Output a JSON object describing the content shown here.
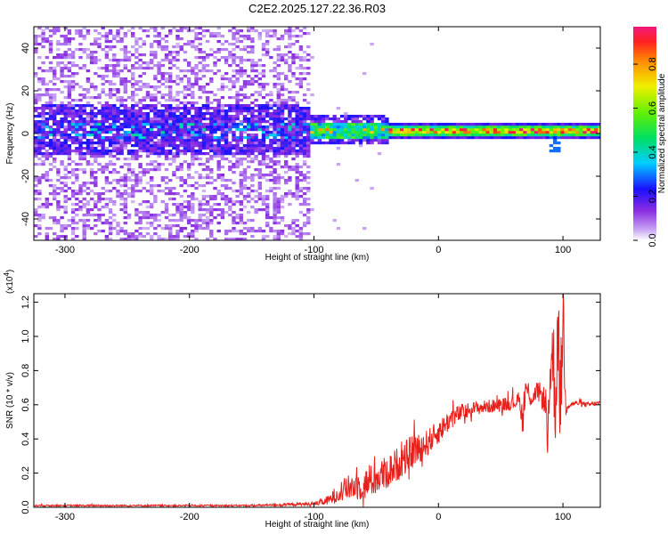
{
  "figure_title": "C2E2.2025.127.22.36.R03",
  "chart_data": [
    {
      "type": "heatmap",
      "xlabel": "Height of straight line (km)",
      "ylabel": "Frequency (Hz)",
      "xlim": [
        -325,
        130
      ],
      "ylim": [
        -50,
        50
      ],
      "xticks": [
        "-300",
        "-200",
        "-100",
        "0",
        "100"
      ],
      "xtick_values": [
        -300,
        -200,
        -100,
        0,
        100
      ],
      "yticks": [
        "-40",
        "-20",
        "0",
        "20",
        "40"
      ],
      "ytick_values": [
        -40,
        -20,
        0,
        20,
        40
      ],
      "colorbar": {
        "label": "Normalized spectral amplitude",
        "range": [
          0.0,
          0.97
        ],
        "ticks": [
          "0.0",
          "0.2",
          "0.4",
          "0.6",
          "0.8"
        ],
        "tick_values": [
          0.0,
          0.2,
          0.4,
          0.6,
          0.8
        ]
      },
      "description_regions": [
        {
          "x_range": [
            -325,
            -105
          ],
          "freq_spread": [
            -50,
            50
          ],
          "level": "low (0.0-0.2) scattered noise"
        },
        {
          "x_range": [
            -325,
            -105
          ],
          "freq_spread": [
            -10,
            10
          ],
          "level": "~0.2 dense band with 0.3-0.5 spots"
        },
        {
          "x_range": [
            -105,
            -40
          ],
          "freq_spread": [
            -5,
            6
          ],
          "level": "0.3-0.6 band"
        },
        {
          "x_range": [
            -40,
            130
          ],
          "freq_spread": [
            -2,
            4
          ],
          "level": "0.4-1.0 narrow band near 1-2 Hz"
        }
      ]
    },
    {
      "type": "line",
      "xlabel": "Height of straight line (km)",
      "ylabel": "SNR (10 * v/v)",
      "y_multiplier": "(x10",
      "y_multiplier_exp": "4",
      "y_multiplier_close": ")",
      "xlim": [
        -325,
        130
      ],
      "ylim": [
        0.0,
        1.25
      ],
      "xticks": [
        "-300",
        "-200",
        "-100",
        "0",
        "100"
      ],
      "xtick_values": [
        -300,
        -200,
        -100,
        0,
        100
      ],
      "yticks": [
        "0.0",
        "0.2",
        "0.4",
        "0.6",
        "0.8",
        "1.0",
        "1.2"
      ],
      "ytick_values": [
        0.0,
        0.2,
        0.4,
        0.6,
        0.8,
        1.0,
        1.2
      ],
      "series": [
        {
          "color": "#e8201c",
          "x": [
            -325,
            -150,
            -100,
            -88,
            -80,
            -70,
            -60,
            -50,
            -40,
            -30,
            -20,
            -10,
            0,
            10,
            20,
            30,
            40,
            50,
            60,
            65,
            68,
            70,
            75,
            80,
            85,
            88,
            90,
            92,
            94,
            96,
            98,
            100,
            102,
            105,
            110,
            120,
            130
          ],
          "y": [
            0.01,
            0.01,
            0.02,
            0.04,
            0.09,
            0.12,
            0.13,
            0.17,
            0.21,
            0.27,
            0.33,
            0.37,
            0.44,
            0.52,
            0.56,
            0.58,
            0.59,
            0.6,
            0.61,
            0.63,
            0.5,
            0.7,
            0.64,
            0.68,
            0.63,
            0.4,
            0.83,
            0.9,
            0.62,
            1.08,
            0.55,
            1.18,
            0.62,
            0.6,
            0.61,
            0.6,
            0.61
          ],
          "noise_amplitude": [
            0.005,
            0.005,
            0.01,
            0.03,
            0.06,
            0.08,
            0.09,
            0.1,
            0.1,
            0.1,
            0.1,
            0.08,
            0.07,
            0.06,
            0.05,
            0.04,
            0.04,
            0.04,
            0.04,
            0.04,
            0.1,
            0.08,
            0.06,
            0.06,
            0.08,
            0.15,
            0.2,
            0.25,
            0.3,
            0.3,
            0.3,
            0.3,
            0.1,
            0.02,
            0.015,
            0.015,
            0.015
          ]
        }
      ]
    }
  ]
}
